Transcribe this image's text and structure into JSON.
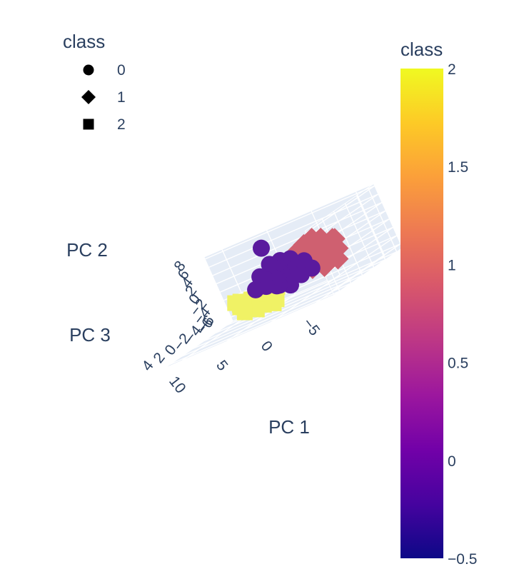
{
  "chart_data": {
    "type": "scatter3d",
    "legend": {
      "title": "class",
      "items": [
        {
          "label": "0",
          "symbol": "circle"
        },
        {
          "label": "1",
          "symbol": "diamond"
        },
        {
          "label": "2",
          "symbol": "square"
        }
      ]
    },
    "colorbar": {
      "title": "class",
      "range": [
        -0.5,
        2
      ],
      "ticks": [
        "2",
        "1.5",
        "1",
        "0.5",
        "0",
        "−0.5"
      ],
      "tick_values": [
        2,
        1.5,
        1,
        0.5,
        0,
        -0.5
      ],
      "colors": [
        "#0d0887",
        "#46039f",
        "#7201a8",
        "#9c179e",
        "#bd3786",
        "#d8576b",
        "#ed7953",
        "#fb9f3a",
        "#fdca26",
        "#f0f921"
      ]
    },
    "axes": {
      "x": {
        "title": "PC 1",
        "ticks": [
          "10",
          "5",
          "0",
          "−5"
        ],
        "tick_values": [
          10,
          5,
          0,
          -5
        ]
      },
      "y": {
        "title": "PC 2",
        "ticks": [
          "8",
          "6",
          "4",
          "2",
          "0",
          "−2",
          "−4",
          "−6"
        ],
        "tick_values": [
          8,
          6,
          4,
          2,
          0,
          -2,
          -4,
          -6
        ]
      },
      "z": {
        "title": "PC 3",
        "ticks": [
          "4",
          "2",
          "0",
          "−2",
          "−4",
          "−6"
        ],
        "tick_values": [
          4,
          2,
          0,
          -2,
          -4,
          -6
        ]
      }
    },
    "series": [
      {
        "name": "0",
        "symbol": "circle",
        "color": "#5a1a9e",
        "points": [
          [
            1.0,
            7.5,
            0.5
          ],
          [
            2.0,
            -3.0,
            -6.5
          ],
          [
            0.5,
            0.5,
            0.0
          ],
          [
            -0.5,
            1.0,
            0.5
          ],
          [
            0.0,
            0.0,
            -0.5
          ],
          [
            1.5,
            0.2,
            0.3
          ],
          [
            1.0,
            -0.5,
            0.8
          ],
          [
            -1.0,
            0.3,
            -0.2
          ],
          [
            0.3,
            1.5,
            1.0
          ],
          [
            0.8,
            -1.0,
            -0.8
          ],
          [
            -0.3,
            -0.5,
            0.2
          ],
          [
            1.8,
            0.8,
            -0.3
          ],
          [
            2.2,
            0.0,
            0.6
          ],
          [
            0.6,
            0.9,
            -1.0
          ],
          [
            -0.8,
            1.8,
            0.0
          ],
          [
            1.2,
            -1.5,
            0.4
          ],
          [
            0.0,
            2.2,
            0.7
          ],
          [
            2.5,
            -0.8,
            0.0
          ],
          [
            -1.2,
            -0.8,
            0.8
          ],
          [
            0.4,
            -2.0,
            -0.3
          ],
          [
            1.6,
            1.2,
            1.2
          ],
          [
            -0.5,
            2.5,
            -0.6
          ],
          [
            2.8,
            0.5,
            -0.7
          ],
          [
            0.2,
            -1.2,
            1.5
          ],
          [
            1.0,
            2.8,
            0.2
          ],
          [
            -1.5,
            0.8,
            -0.9
          ],
          [
            3.0,
            -0.3,
            0.9
          ],
          [
            0.9,
            0.1,
            -1.6
          ],
          [
            -0.2,
            -2.5,
            0.5
          ],
          [
            1.4,
            3.3,
            -0.2
          ],
          [
            -0.6,
            3.5,
            1.0
          ],
          [
            0.7,
            1.0,
            0.0
          ],
          [
            1.9,
            -2.0,
            -1.0
          ],
          [
            0.1,
            0.6,
            1.8
          ],
          [
            2.4,
            1.8,
            0.4
          ],
          [
            -1.0,
            -1.6,
            -0.4
          ],
          [
            0.5,
            -0.2,
            0.9
          ],
          [
            1.1,
            0.7,
            -0.5
          ],
          [
            -0.4,
            1.3,
            1.4
          ],
          [
            2.0,
            2.4,
            -1.2
          ]
        ]
      },
      {
        "name": "1",
        "symbol": "diamond",
        "color": "#cf6070",
        "points": [
          [
            -4.5,
            4.0,
            1.5
          ],
          [
            -5.0,
            2.0,
            0.5
          ],
          [
            -4.0,
            1.0,
            -1.0
          ],
          [
            -3.5,
            3.0,
            0.0
          ],
          [
            -5.5,
            0.5,
            -0.5
          ],
          [
            -3.0,
            2.5,
            1.0
          ],
          [
            -4.8,
            -0.5,
            0.8
          ],
          [
            -2.5,
            1.5,
            -0.8
          ],
          [
            -3.8,
            3.8,
            -1.2
          ],
          [
            -5.2,
            1.5,
            1.8
          ],
          [
            -2.8,
            0.0,
            0.5
          ],
          [
            -4.2,
            -1.2,
            -0.3
          ],
          [
            -3.2,
            4.5,
            0.6
          ],
          [
            -5.8,
            2.8,
            -0.2
          ],
          [
            -2.0,
            2.8,
            0.2
          ],
          [
            -3.6,
            -0.8,
            1.4
          ],
          [
            -4.6,
            2.6,
            -1.6
          ],
          [
            -2.4,
            3.6,
            1.2
          ],
          [
            -5.4,
            -1.5,
            0.0
          ],
          [
            -3.0,
            1.0,
            -2.0
          ],
          [
            -4.0,
            5.0,
            0.3
          ],
          [
            -1.8,
            1.0,
            1.6
          ],
          [
            -6.0,
            1.0,
            0.9
          ],
          [
            -3.4,
            -2.0,
            -0.6
          ]
        ]
      },
      {
        "name": "2",
        "symbol": "square",
        "color": "#f0f265",
        "points": [
          [
            2.0,
            -2.5,
            2.0
          ],
          [
            3.0,
            -2.0,
            1.0
          ],
          [
            1.5,
            -3.0,
            0.5
          ],
          [
            4.0,
            -1.5,
            2.5
          ],
          [
            2.5,
            -3.5,
            1.5
          ],
          [
            3.5,
            -2.8,
            0.0
          ],
          [
            1.0,
            -2.0,
            2.8
          ],
          [
            4.5,
            -2.2,
            1.2
          ],
          [
            2.8,
            -4.0,
            2.2
          ],
          [
            3.8,
            -3.2,
            0.8
          ],
          [
            0.8,
            -3.8,
            1.8
          ],
          [
            5.0,
            -1.0,
            1.6
          ],
          [
            2.2,
            -1.2,
            3.2
          ],
          [
            3.2,
            -4.2,
            0.4
          ],
          [
            4.2,
            -3.6,
            2.0
          ],
          [
            1.8,
            -4.6,
            1.0
          ],
          [
            5.4,
            -2.6,
            0.6
          ],
          [
            2.6,
            -1.8,
            -0.4
          ],
          [
            0.5,
            -1.5,
            1.4
          ],
          [
            3.6,
            -0.8,
            2.8
          ]
        ]
      }
    ]
  }
}
